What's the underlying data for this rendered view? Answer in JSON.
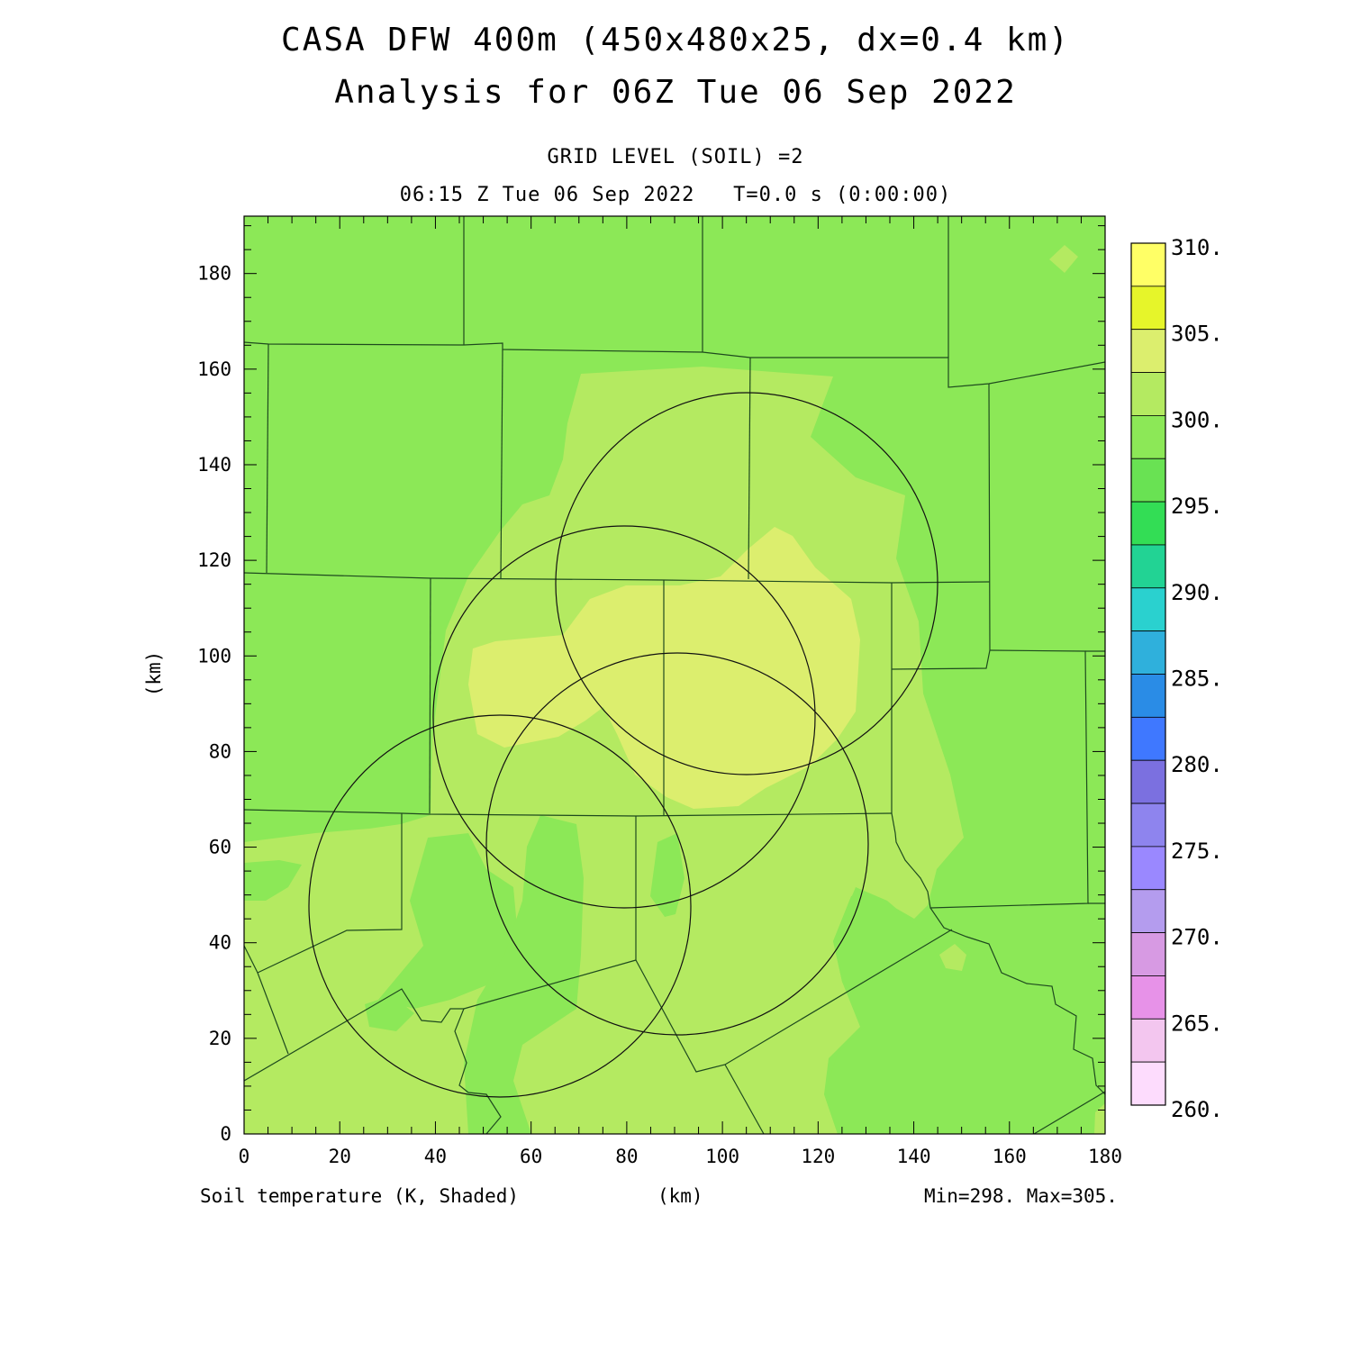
{
  "title_line1": "CASA DFW 400m (450x480x25, dx=0.4 km)",
  "title_line2": "Analysis for 06Z Tue 06 Sep 2022",
  "subtitle_line1": "GRID LEVEL (SOIL) =2",
  "subtitle_line2": "06:15 Z Tue 06 Sep 2022   T=0.0 s (0:00:00)",
  "footer": {
    "variable": "Soil temperature (K, Shaded)",
    "xunit": "(km)",
    "minmax": "Min=298. Max=305."
  },
  "chart_data": {
    "type": "heatmap",
    "xlabel": "(km)",
    "ylabel": "(km)",
    "xlim": [
      0,
      180
    ],
    "ylim": [
      0,
      192
    ],
    "x_ticks": [
      0,
      20,
      40,
      60,
      80,
      100,
      120,
      140,
      160,
      180
    ],
    "y_ticks": [
      0,
      20,
      40,
      60,
      80,
      100,
      120,
      140,
      160,
      180
    ],
    "min": 298,
    "max": 305,
    "colorbar": {
      "labels": [
        "310.",
        "305.",
        "300.",
        "295.",
        "290.",
        "285.",
        "280.",
        "275.",
        "270.",
        "265.",
        "260."
      ],
      "colors": [
        "#ffff66",
        "#e6f52a",
        "#dcee6e",
        "#b4ea61",
        "#8ce857",
        "#69e253",
        "#33dd55",
        "#22d394",
        "#2ad1cf",
        "#2fb0dc",
        "#2a8ce6",
        "#3f78ff",
        "#7b70e0",
        "#8e84ee",
        "#9a88ff",
        "#b49cee",
        "#d79ae3",
        "#e792e8",
        "#f3c6ef",
        "#fddcfd"
      ]
    },
    "field_levels": [
      {
        "range": "298-300",
        "color": "#8ce857"
      },
      {
        "range": "300-302.5",
        "color": "#b4ea61"
      },
      {
        "range": "302.5-305",
        "color": "#dcee6e"
      }
    ],
    "radar_rings": [
      {
        "center_x": 105,
        "center_y": 115,
        "radius": 40
      },
      {
        "center_x": 79,
        "center_y": 87,
        "radius": 40
      },
      {
        "center_x": 90,
        "center_y": 60.5,
        "radius": 40
      },
      {
        "center_x": 55,
        "center_y": 47.5,
        "radius": 40
      }
    ]
  }
}
